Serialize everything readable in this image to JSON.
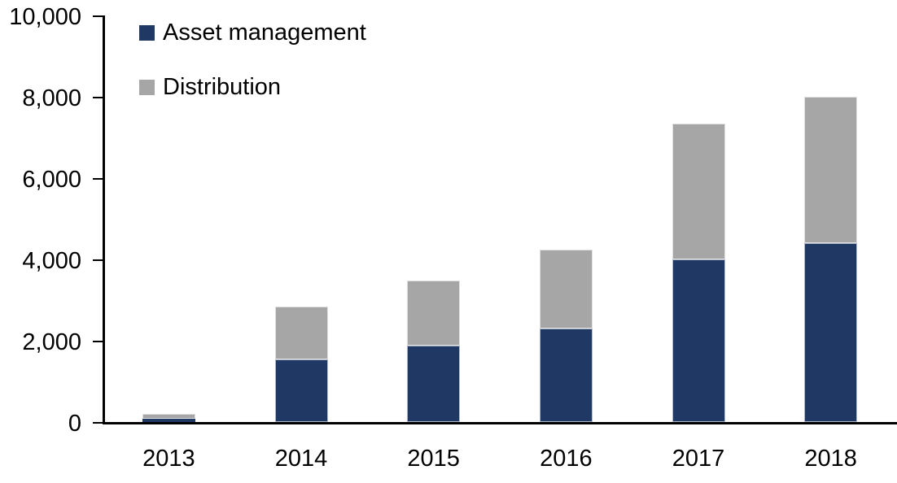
{
  "chart_data": {
    "type": "bar",
    "stacked": true,
    "title": "",
    "xlabel": "",
    "ylabel": "",
    "categories": [
      "2013",
      "2014",
      "2015",
      "2016",
      "2017",
      "2018"
    ],
    "series": [
      {
        "name": "Asset management",
        "color": "#1F3864",
        "values": [
          75,
          1550,
          1875,
          2300,
          4000,
          4400
        ]
      },
      {
        "name": "Distribution",
        "color": "#A6A6A6",
        "values": [
          125,
          1300,
          1600,
          1950,
          3350,
          3600
        ]
      }
    ],
    "totals": [
      200,
      2850,
      3475,
      4250,
      7350,
      8000
    ],
    "ylim": [
      0,
      10000
    ],
    "ytick_step": 2000,
    "ytick_labels": [
      "0",
      "2,000",
      "4,000",
      "6,000",
      "8,000",
      "10,000"
    ],
    "grid": false,
    "legend_position": "top-left"
  },
  "colors": {
    "background": "#FFFFFF",
    "axis": "#000000",
    "text": "#000000",
    "asset_management": "#1F3864",
    "distribution": "#A6A6A6"
  }
}
